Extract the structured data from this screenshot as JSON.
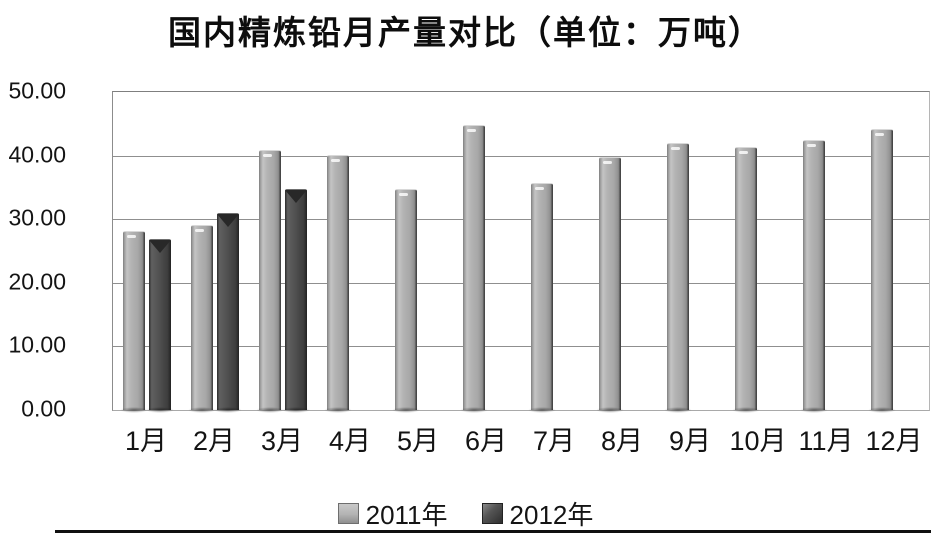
{
  "title": "国内精炼铅月产量对比（单位：万吨）",
  "colors": {
    "bar_2011": "#ababab",
    "bar_2012": "#4a4a4a",
    "gridline": "#8f8f8f",
    "text": "#141414",
    "background": "#ffffff"
  },
  "chart_data": {
    "type": "bar",
    "title": "国内精炼铅月产量对比（单位：万吨）",
    "categories": [
      "1月",
      "2月",
      "3月",
      "4月",
      "5月",
      "6月",
      "7月",
      "8月",
      "9月",
      "10月",
      "11月",
      "12月"
    ],
    "series": [
      {
        "name": "2011年",
        "values": [
          28.0,
          29.0,
          40.8,
          40.0,
          34.6,
          44.7,
          35.6,
          39.6,
          41.8,
          41.2,
          42.3,
          44.0
        ]
      },
      {
        "name": "2012年",
        "values": [
          26.8,
          30.8,
          34.6,
          null,
          null,
          null,
          null,
          null,
          null,
          null,
          null,
          null
        ]
      }
    ],
    "ylim": [
      0,
      50
    ],
    "ytick_step": 10,
    "ytick_labels": [
      "0.00",
      "10.00",
      "20.00",
      "30.00",
      "40.00",
      "50.00"
    ],
    "xlabel": "",
    "ylabel": "",
    "grid": "horizontal",
    "legend_position": "bottom"
  }
}
